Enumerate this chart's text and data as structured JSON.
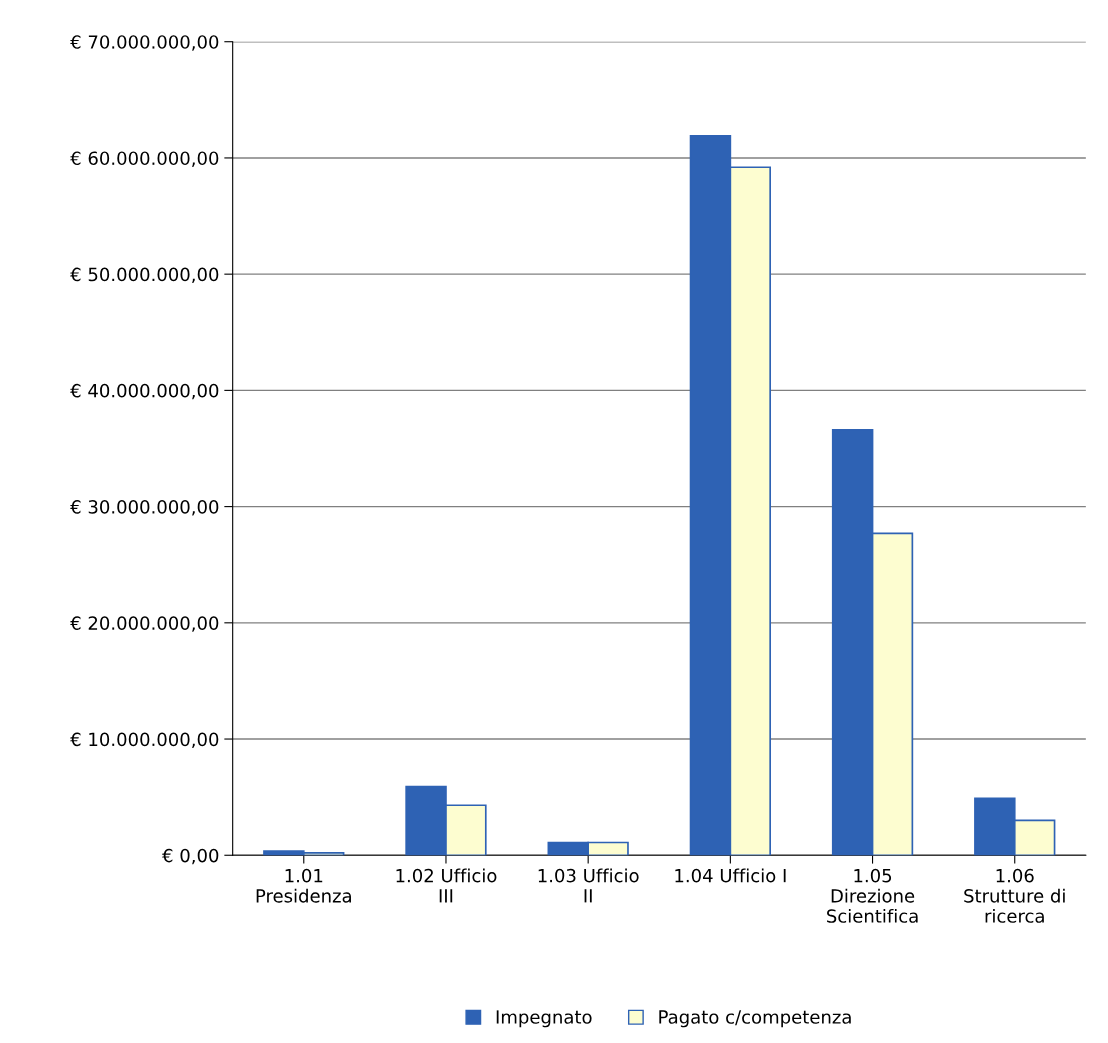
{
  "chart_data": {
    "type": "bar",
    "categories": [
      "1.01\nPresidenza",
      "1.02 Ufficio\nIII",
      "1.03 Ufficio\nII",
      "1.04 Ufficio I",
      "1.05\nDirezione\nScientifica",
      "1.06\nStrutture di\nricerca"
    ],
    "series": [
      {
        "name": "Impegnato",
        "color": "#2e62b4",
        "values": [
          350000,
          5900000,
          1100000,
          61900000,
          36600000,
          4900000
        ]
      },
      {
        "name": "Pagato c/competenza",
        "color": "#fdfdd0",
        "values": [
          200000,
          4300000,
          1100000,
          59200000,
          27700000,
          3000000
        ]
      }
    ],
    "ylim": [
      0,
      70000000
    ],
    "yticks": [
      {
        "value": 0,
        "label": "€ 0,00"
      },
      {
        "value": 10000000,
        "label": "€ 10.000.000,00"
      },
      {
        "value": 20000000,
        "label": "€ 20.000.000,00"
      },
      {
        "value": 30000000,
        "label": "€ 30.000.000,00"
      },
      {
        "value": 40000000,
        "label": "€ 40.000.000,00"
      },
      {
        "value": 50000000,
        "label": "€ 50.000.000,00"
      },
      {
        "value": 60000000,
        "label": "€ 60.000.000,00"
      },
      {
        "value": 70000000,
        "label": "€ 70.000.000,00"
      }
    ],
    "grid": "y",
    "legend": "bottom"
  }
}
